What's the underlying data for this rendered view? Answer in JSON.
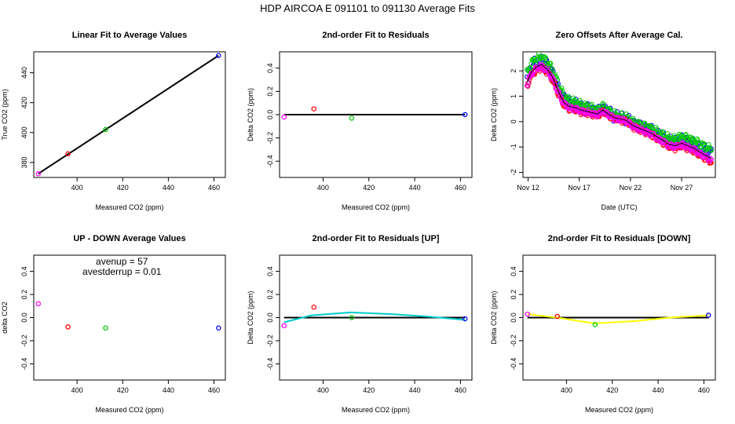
{
  "figure": {
    "title": "HDP    AIRCOA E   091101 to 091130   Average Fits"
  },
  "chart_data": [
    {
      "id": "p1",
      "type": "scatter",
      "title": "Linear Fit to Average Values",
      "xlabel": "Measured CO2 (ppm)",
      "ylabel": "True CO2 (ppm)",
      "xlim": [
        381,
        465
      ],
      "ylim": [
        370,
        454
      ],
      "xticks": [
        400,
        420,
        440,
        460
      ],
      "yticks": [
        380,
        400,
        420,
        440
      ],
      "lines": [
        {
          "x": [
            383,
            462
          ],
          "y": [
            372.5,
            451.5
          ],
          "color": "#000000"
        }
      ],
      "points": [
        {
          "x": 383.0,
          "y": 372.5,
          "color": "#ff00ff"
        },
        {
          "x": 396.0,
          "y": 385.8,
          "color": "#ff0000"
        },
        {
          "x": 412.5,
          "y": 402.0,
          "color": "#00cc00"
        },
        {
          "x": 462.0,
          "y": 451.5,
          "color": "#0000ff"
        }
      ]
    },
    {
      "id": "p2",
      "type": "scatter",
      "title": "2nd-order Fit to Residuals",
      "xlabel": "Measured CO2 (ppm)",
      "ylabel": "Delta CO2 (ppm)",
      "xlim": [
        381,
        465
      ],
      "ylim": [
        -0.54,
        0.54
      ],
      "xticks": [
        400,
        420,
        440,
        460
      ],
      "yticks": [
        -0.4,
        -0.2,
        0.0,
        0.2,
        0.4
      ],
      "lines": [
        {
          "x": [
            383,
            462
          ],
          "y": [
            0,
            0
          ],
          "color": "#000000"
        }
      ],
      "points": [
        {
          "x": 383.0,
          "y": -0.02,
          "color": "#ff00ff"
        },
        {
          "x": 396.0,
          "y": 0.05,
          "color": "#ff0000"
        },
        {
          "x": 412.5,
          "y": -0.03,
          "color": "#00cc00"
        },
        {
          "x": 462.0,
          "y": 0.0,
          "color": "#0000ff"
        }
      ]
    },
    {
      "id": "p3",
      "type": "scatter",
      "title": "Zero Offsets After Average Cal.",
      "xlabel": "Date (UTC)",
      "ylabel": "Delta CO2 (ppm)",
      "xlim": [
        11.5,
        30.3
      ],
      "ylim": [
        -2.2,
        2.75
      ],
      "xticks": [
        12,
        17,
        22,
        27
      ],
      "xticklabels": [
        "Nov 12",
        "Nov 17",
        "Nov 22",
        "Nov 27"
      ],
      "yticks": [
        -2,
        -1,
        0,
        1,
        2
      ],
      "series": [
        {
          "name": "blue",
          "color": "#0000ff",
          "offset": 0.15,
          "amp": 0.25
        },
        {
          "name": "green",
          "color": "#00cc00",
          "offset": 0.25,
          "amp": 0.18
        },
        {
          "name": "red",
          "color": "#ff0000",
          "offset": -0.1,
          "amp": 0.12
        },
        {
          "name": "magenta",
          "color": "#ff00ff",
          "offset": -0.05,
          "amp": 0.12
        }
      ],
      "trend": {
        "x": [
          11.9,
          12.3,
          12.8,
          13.3,
          13.9,
          14.4,
          15.0,
          15.5,
          16.0,
          16.6,
          17.2,
          17.8,
          18.3,
          18.8,
          19.3,
          20.0,
          20.5,
          21.0,
          21.6,
          22.2,
          22.8,
          23.4,
          24.0,
          24.6,
          25.2,
          25.8,
          26.4,
          27.0,
          27.6,
          28.2,
          28.8,
          29.4,
          29.9
        ],
        "y": [
          1.55,
          1.95,
          2.15,
          2.25,
          2.05,
          1.75,
          1.15,
          0.75,
          0.6,
          0.55,
          0.45,
          0.4,
          0.35,
          0.3,
          0.45,
          0.25,
          0.15,
          0.1,
          0.05,
          -0.15,
          -0.25,
          -0.35,
          -0.45,
          -0.6,
          -0.75,
          -0.9,
          -0.95,
          -0.85,
          -0.95,
          -1.05,
          -1.2,
          -1.35,
          -1.45
        ],
        "color": "#000000"
      }
    },
    {
      "id": "p4",
      "type": "scatter",
      "title": "UP - DOWN Average Values",
      "xlabel": "Measured CO2 (ppm)",
      "ylabel": "delta CO2",
      "xlim": [
        381,
        465
      ],
      "ylim": [
        -0.54,
        0.54
      ],
      "xticks": [
        400,
        420,
        440,
        460
      ],
      "yticks": [
        -0.4,
        -0.2,
        0.0,
        0.2,
        0.4
      ],
      "lines": [],
      "points": [
        {
          "x": 383.0,
          "y": 0.12,
          "color": "#ff00ff"
        },
        {
          "x": 396.0,
          "y": -0.08,
          "color": "#ff0000"
        },
        {
          "x": 412.5,
          "y": -0.09,
          "color": "#00cc00"
        },
        {
          "x": 462.0,
          "y": -0.09,
          "color": "#0000ff"
        }
      ],
      "annotations": [
        "avenup =  57",
        "avestderrup =  0.01"
      ]
    },
    {
      "id": "p5",
      "type": "scatter",
      "title": "2nd-order Fit to Residuals [UP]",
      "xlabel": "Measured CO2 (ppm)",
      "ylabel": "Delta CO2 (ppm)",
      "xlim": [
        381,
        465
      ],
      "ylim": [
        -0.54,
        0.54
      ],
      "xticks": [
        400,
        420,
        440,
        460
      ],
      "yticks": [
        -0.4,
        -0.2,
        0.0,
        0.2,
        0.4
      ],
      "lines": [
        {
          "x": [
            383,
            462
          ],
          "y": [
            0,
            0
          ],
          "color": "#000000"
        },
        {
          "x": [
            383,
            395,
            412,
            430,
            445,
            462
          ],
          "y": [
            -0.04,
            0.02,
            0.045,
            0.03,
            0.01,
            -0.02
          ],
          "color": "#00cccc"
        }
      ],
      "points": [
        {
          "x": 383.0,
          "y": -0.07,
          "color": "#ff00ff"
        },
        {
          "x": 396.0,
          "y": 0.09,
          "color": "#ff0000"
        },
        {
          "x": 412.5,
          "y": 0.0,
          "color": "#00cc00"
        },
        {
          "x": 462.0,
          "y": -0.01,
          "color": "#0000ff"
        }
      ]
    },
    {
      "id": "p6",
      "type": "scatter",
      "title": "2nd-order Fit to Residuals [DOWN]",
      "xlabel": "Measured CO2 (ppm)",
      "ylabel": "Delta CO2 (ppm)",
      "xlim": [
        381,
        465
      ],
      "ylim": [
        -0.54,
        0.54
      ],
      "xticks": [
        400,
        420,
        440,
        460
      ],
      "yticks": [
        -0.4,
        -0.2,
        0.0,
        0.2,
        0.4
      ],
      "lines": [
        {
          "x": [
            383,
            462
          ],
          "y": [
            0,
            0
          ],
          "color": "#000000"
        },
        {
          "x": [
            383,
            396,
            412,
            430,
            445,
            462
          ],
          "y": [
            0.03,
            0.0,
            -0.05,
            -0.03,
            0.0,
            0.02
          ],
          "color": "#ffff00"
        }
      ],
      "points": [
        {
          "x": 383.0,
          "y": 0.03,
          "color": "#ff00ff"
        },
        {
          "x": 396.0,
          "y": 0.01,
          "color": "#ff0000"
        },
        {
          "x": 412.5,
          "y": -0.06,
          "color": "#00cc00"
        },
        {
          "x": 462.0,
          "y": 0.02,
          "color": "#0000ff"
        }
      ]
    }
  ]
}
